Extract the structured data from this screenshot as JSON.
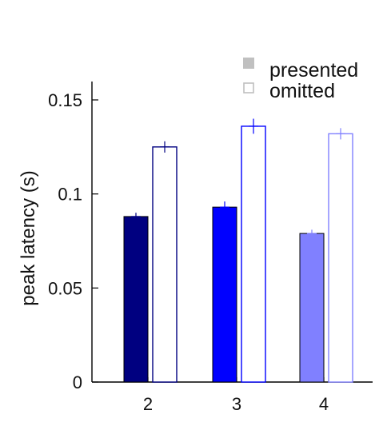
{
  "chart_data": {
    "type": "bar",
    "title": "",
    "xlabel": "",
    "ylabel": "peak latency (s)",
    "categories": [
      "2",
      "3",
      "4"
    ],
    "ylim": [
      0,
      0.16
    ],
    "yticks": [
      0,
      0.05,
      0.1,
      0.15
    ],
    "ytick_labels": [
      "0",
      "0.05",
      "0.1",
      "0.15"
    ],
    "grid": false,
    "legend_position": "top-right",
    "series": [
      {
        "name": "presented",
        "style": "filled",
        "values": [
          0.088,
          0.093,
          0.079
        ],
        "errors": [
          0.002,
          0.003,
          0.002
        ],
        "colors": [
          "#000080",
          "#0000ff",
          "#8080ff"
        ],
        "legend_color": "#c0c0c0"
      },
      {
        "name": "omitted",
        "style": "outline",
        "values": [
          0.125,
          0.136,
          0.132
        ],
        "errors": [
          0.003,
          0.004,
          0.003
        ],
        "colors": [
          "#000080",
          "#0000ff",
          "#8080ff"
        ],
        "legend_color": "#c0c0c0"
      }
    ]
  }
}
